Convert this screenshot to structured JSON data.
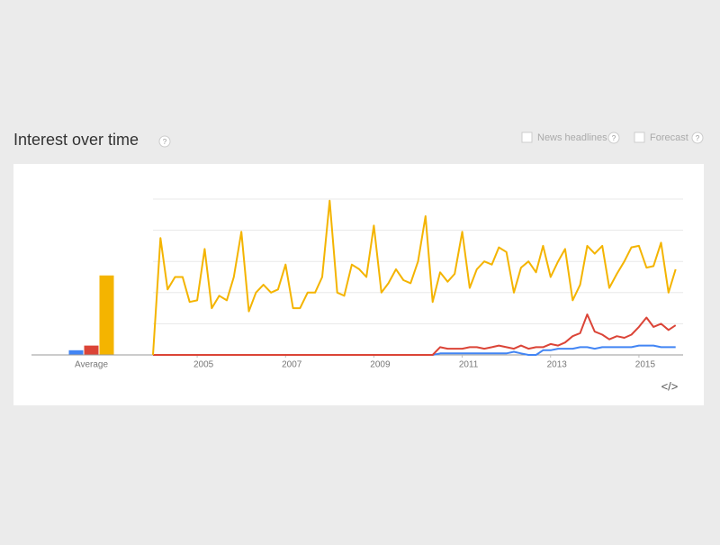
{
  "header": {
    "title": "Interest over time",
    "help": "?"
  },
  "options": [
    {
      "label": "News headlines",
      "help": "?"
    },
    {
      "label": "Forecast",
      "help": "?"
    }
  ],
  "embed": "</>",
  "chart_data": [
    {
      "type": "bar",
      "categories": [
        "Average"
      ],
      "series": [
        {
          "color": "#4285f4",
          "values": [
            3
          ]
        },
        {
          "color": "#db4437",
          "values": [
            6
          ]
        },
        {
          "color": "#f4b400",
          "values": [
            51
          ]
        }
      ],
      "ylim": [
        0,
        100
      ]
    },
    {
      "type": "line",
      "x": [
        2004,
        2004.17,
        2004.33,
        2004.5,
        2004.67,
        2004.83,
        2005,
        2005.17,
        2005.33,
        2005.5,
        2005.67,
        2005.83,
        2006,
        2006.17,
        2006.33,
        2006.5,
        2006.67,
        2006.83,
        2007,
        2007.17,
        2007.33,
        2007.5,
        2007.67,
        2007.83,
        2008,
        2008.17,
        2008.33,
        2008.5,
        2008.67,
        2008.83,
        2009,
        2009.17,
        2009.33,
        2009.5,
        2009.67,
        2009.83,
        2010,
        2010.17,
        2010.33,
        2010.5,
        2010.67,
        2010.83,
        2011,
        2011.17,
        2011.33,
        2011.5,
        2011.67,
        2011.83,
        2012,
        2012.17,
        2012.33,
        2012.5,
        2012.67,
        2012.83,
        2013,
        2013.17,
        2013.33,
        2013.5,
        2013.67,
        2013.83,
        2014,
        2014.17,
        2014.33,
        2014.5,
        2014.67,
        2014.83,
        2015,
        2015.17,
        2015.33,
        2015.5,
        2015.67,
        2015.83
      ],
      "series": [
        {
          "color": "#4285f4",
          "values": [
            0,
            0,
            0,
            0,
            0,
            0,
            0,
            0,
            0,
            0,
            0,
            0,
            0,
            0,
            0,
            0,
            0,
            0,
            0,
            0,
            0,
            0,
            0,
            0,
            0,
            0,
            0,
            0,
            0,
            0,
            0,
            0,
            0,
            0,
            0,
            0,
            0,
            0,
            0,
            1,
            1,
            1,
            1,
            1,
            1,
            1,
            1,
            1,
            1,
            2,
            1,
            0,
            0,
            3,
            3,
            4,
            4,
            4,
            5,
            5,
            4,
            5,
            5,
            5,
            5,
            5,
            6,
            6,
            6,
            5,
            5,
            5
          ]
        },
        {
          "color": "#db4437",
          "values": [
            0,
            0,
            0,
            0,
            0,
            0,
            0,
            0,
            0,
            0,
            0,
            0,
            0,
            0,
            0,
            0,
            0,
            0,
            0,
            0,
            0,
            0,
            0,
            0,
            0,
            0,
            0,
            0,
            0,
            0,
            0,
            0,
            0,
            0,
            0,
            0,
            0,
            0,
            0,
            5,
            4,
            4,
            4,
            5,
            5,
            4,
            5,
            6,
            5,
            4,
            6,
            4,
            5,
            5,
            7,
            6,
            8,
            12,
            14,
            26,
            15,
            13,
            10,
            12,
            11,
            13,
            18,
            24,
            18,
            20,
            16,
            19
          ]
        },
        {
          "color": "#f4b400",
          "values": [
            0,
            75,
            42,
            50,
            50,
            34,
            35,
            68,
            30,
            38,
            35,
            50,
            79,
            28,
            40,
            45,
            40,
            42,
            58,
            30,
            30,
            40,
            40,
            50,
            99,
            40,
            38,
            58,
            55,
            50,
            83,
            40,
            46,
            55,
            48,
            46,
            60,
            89,
            34,
            53,
            47,
            52,
            79,
            43,
            55,
            60,
            58,
            69,
            66,
            40,
            56,
            60,
            53,
            70,
            50,
            60,
            68,
            35,
            45,
            70,
            65,
            70,
            43,
            52,
            60,
            69,
            70,
            56,
            57,
            72,
            40,
            55
          ]
        }
      ],
      "xlim": [
        2004,
        2016
      ],
      "xticks": [
        2005,
        2007,
        2009,
        2011,
        2013,
        2015
      ],
      "ylim": [
        0,
        100
      ],
      "yticks": [
        0,
        20,
        40,
        60,
        80,
        100
      ],
      "grid": true
    }
  ]
}
